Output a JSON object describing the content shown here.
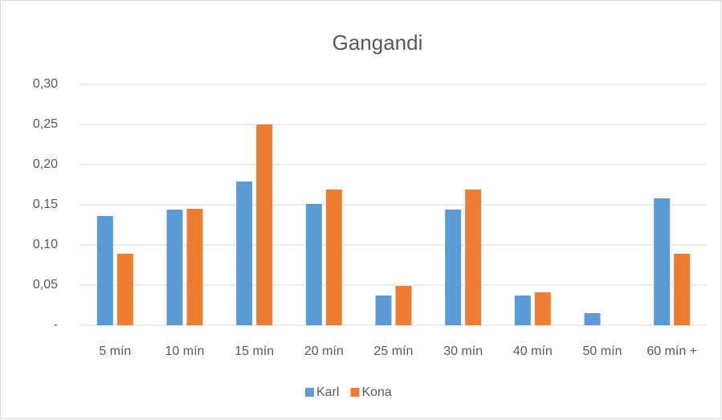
{
  "chart_data": {
    "type": "bar",
    "title": "Gangandi",
    "categories": [
      "5 mín",
      "10 mín",
      "15 mín",
      "20 mín",
      "25 mín",
      "30 mín",
      "40 mín",
      "50 mín",
      "60 mín +"
    ],
    "series": [
      {
        "name": "Karl",
        "color": "#5b9bd5",
        "values": [
          0.136,
          0.144,
          0.179,
          0.151,
          0.037,
          0.144,
          0.037,
          0.015,
          0.158
        ]
      },
      {
        "name": "Kona",
        "color": "#ed7d31",
        "values": [
          0.089,
          0.145,
          0.25,
          0.169,
          0.049,
          0.169,
          0.041,
          0,
          0.089
        ]
      }
    ],
    "ylim": [
      0,
      0.3
    ],
    "yticks": [
      {
        "value": 0,
        "label": "-"
      },
      {
        "value": 0.05,
        "label": "0,05"
      },
      {
        "value": 0.1,
        "label": "0,10"
      },
      {
        "value": 0.15,
        "label": "0,15"
      },
      {
        "value": 0.2,
        "label": "0,20"
      },
      {
        "value": 0.25,
        "label": "0,25"
      },
      {
        "value": 0.3,
        "label": "0,30"
      }
    ],
    "grid": true,
    "legend": "bottom"
  }
}
